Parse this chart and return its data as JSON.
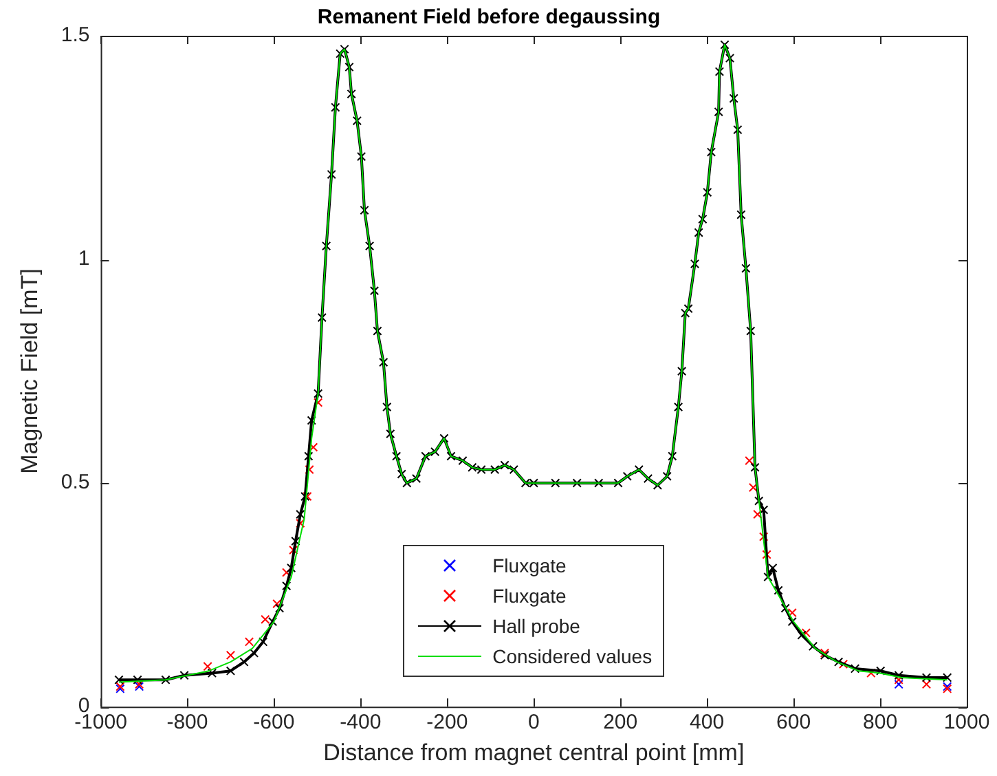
{
  "chart_data": {
    "type": "line",
    "title": "Remanent Field before degaussing",
    "xlabel": "Distance from magnet central point [mm]",
    "ylabel": "Magnetic Field [mT]",
    "xlim": [
      -1000,
      1000
    ],
    "xticks": [
      -1000,
      -800,
      -600,
      -400,
      -200,
      0,
      200,
      400,
      600,
      800,
      1000
    ],
    "ylim": [
      0,
      1.5
    ],
    "yticks": [
      0,
      0.5,
      1,
      1.5
    ],
    "grid": false,
    "legend": "bottom",
    "series": [
      {
        "name": "Fluxgate",
        "type": "scatter",
        "marker": "cross",
        "color": "#0000ff",
        "x": [
          -955,
          -911,
          843,
          907,
          955
        ],
        "values": [
          0.04,
          0.045,
          0.05,
          null,
          0.045
        ]
      },
      {
        "name": "Fluxgate",
        "type": "scatter",
        "marker": "cross",
        "color": "#ff0000",
        "x": [
          -955,
          -911,
          -753,
          -700,
          -657,
          -620,
          -593,
          -571,
          -555,
          -539,
          -523,
          -518,
          -509,
          -498,
          498,
          507,
          517,
          531,
          538,
          565,
          597,
          629,
          672,
          715,
          779,
          843,
          907,
          955
        ],
        "values": [
          0.045,
          0.05,
          0.09,
          0.115,
          0.145,
          0.195,
          0.23,
          0.3,
          0.35,
          0.41,
          0.47,
          0.53,
          0.58,
          0.68,
          0.55,
          0.49,
          0.43,
          0.38,
          0.34,
          null,
          0.21,
          0.165,
          0.12,
          0.095,
          0.075,
          0.06,
          0.05,
          0.04
        ]
      },
      {
        "name": "Hall probe",
        "marker": "cross",
        "color": "#000000",
        "x": [
          -958,
          -915,
          -850,
          -807,
          -743,
          -700,
          -669,
          -646,
          -625,
          -603,
          -587,
          -571,
          -560,
          -550,
          -539,
          -528,
          -520,
          -513,
          -498,
          -489,
          -479,
          -467,
          -458,
          -447,
          -437,
          -426,
          -421,
          -408,
          -398,
          -391,
          -379,
          -368,
          -361,
          -347,
          -339,
          -331,
          -317,
          -305,
          -293,
          -271,
          -250,
          -228,
          -207,
          -191,
          -164,
          -142,
          -121,
          -90,
          -67,
          -46,
          -19,
          0,
          50,
          100,
          150,
          195,
          216,
          243,
          264,
          286,
          308,
          320,
          334,
          342,
          350,
          357,
          372,
          381,
          390,
          401,
          410,
          427,
          429,
          441,
          453,
          462,
          471,
          479,
          490,
          501,
          511,
          520,
          531,
          541,
          552,
          565,
          581,
          597,
          619,
          645,
          672,
          704,
          742,
          801,
          843,
          907,
          955
        ],
        "values": [
          0.06,
          0.06,
          0.06,
          0.07,
          0.075,
          0.08,
          0.1,
          0.12,
          0.145,
          0.19,
          0.22,
          0.27,
          0.31,
          0.37,
          0.43,
          0.47,
          0.56,
          0.64,
          0.7,
          0.87,
          1.03,
          1.19,
          1.34,
          1.46,
          1.47,
          1.43,
          1.37,
          1.31,
          1.23,
          1.11,
          1.03,
          0.93,
          0.84,
          0.77,
          0.67,
          0.61,
          0.56,
          0.52,
          0.5,
          0.51,
          0.56,
          0.57,
          0.6,
          0.56,
          0.55,
          0.535,
          0.53,
          0.53,
          0.54,
          0.53,
          0.5,
          0.5,
          0.5,
          0.5,
          0.5,
          0.5,
          0.515,
          0.53,
          0.51,
          0.495,
          0.515,
          0.56,
          0.67,
          0.75,
          0.88,
          0.89,
          0.99,
          1.06,
          1.09,
          1.15,
          1.24,
          1.33,
          1.42,
          1.48,
          1.45,
          1.36,
          1.29,
          1.1,
          0.98,
          0.84,
          0.535,
          0.46,
          0.44,
          0.29,
          0.31,
          0.26,
          0.22,
          0.19,
          0.16,
          0.135,
          0.115,
          0.1,
          0.085,
          0.08,
          0.07,
          0.065,
          0.065
        ]
      },
      {
        "name": "Considered values",
        "marker": "none",
        "color": "#00dd00",
        "x": [
          -958,
          -850,
          -750,
          -700,
          -650,
          -600,
          -560,
          -530,
          -513,
          -498,
          -489,
          -479,
          -467,
          -458,
          -447,
          -437,
          -426,
          -421,
          -408,
          -398,
          -391,
          -379,
          -368,
          -361,
          -347,
          -339,
          -331,
          -317,
          -305,
          -293,
          -271,
          -250,
          -228,
          -207,
          -191,
          -164,
          -142,
          -121,
          -90,
          -67,
          -46,
          -19,
          0,
          50,
          100,
          150,
          195,
          216,
          243,
          264,
          286,
          308,
          320,
          334,
          342,
          350,
          357,
          372,
          381,
          390,
          401,
          410,
          427,
          429,
          441,
          453,
          462,
          471,
          479,
          490,
          501,
          511,
          541,
          565,
          600,
          650,
          700,
          750,
          800,
          850,
          955
        ],
        "values": [
          0.055,
          0.06,
          0.08,
          0.1,
          0.13,
          0.19,
          0.29,
          0.42,
          0.6,
          0.7,
          0.87,
          1.03,
          1.19,
          1.34,
          1.46,
          1.47,
          1.43,
          1.37,
          1.31,
          1.23,
          1.11,
          1.03,
          0.93,
          0.84,
          0.77,
          0.67,
          0.61,
          0.56,
          0.52,
          0.5,
          0.51,
          0.56,
          0.57,
          0.6,
          0.56,
          0.55,
          0.535,
          0.53,
          0.53,
          0.54,
          0.53,
          0.5,
          0.5,
          0.5,
          0.5,
          0.5,
          0.5,
          0.515,
          0.53,
          0.51,
          0.495,
          0.515,
          0.56,
          0.67,
          0.75,
          0.88,
          0.89,
          0.99,
          1.06,
          1.09,
          1.15,
          1.24,
          1.33,
          1.42,
          1.48,
          1.45,
          1.36,
          1.29,
          1.1,
          0.98,
          0.84,
          0.535,
          0.29,
          0.25,
          0.19,
          0.13,
          0.1,
          0.08,
          0.075,
          0.065,
          0.06
        ]
      }
    ]
  }
}
